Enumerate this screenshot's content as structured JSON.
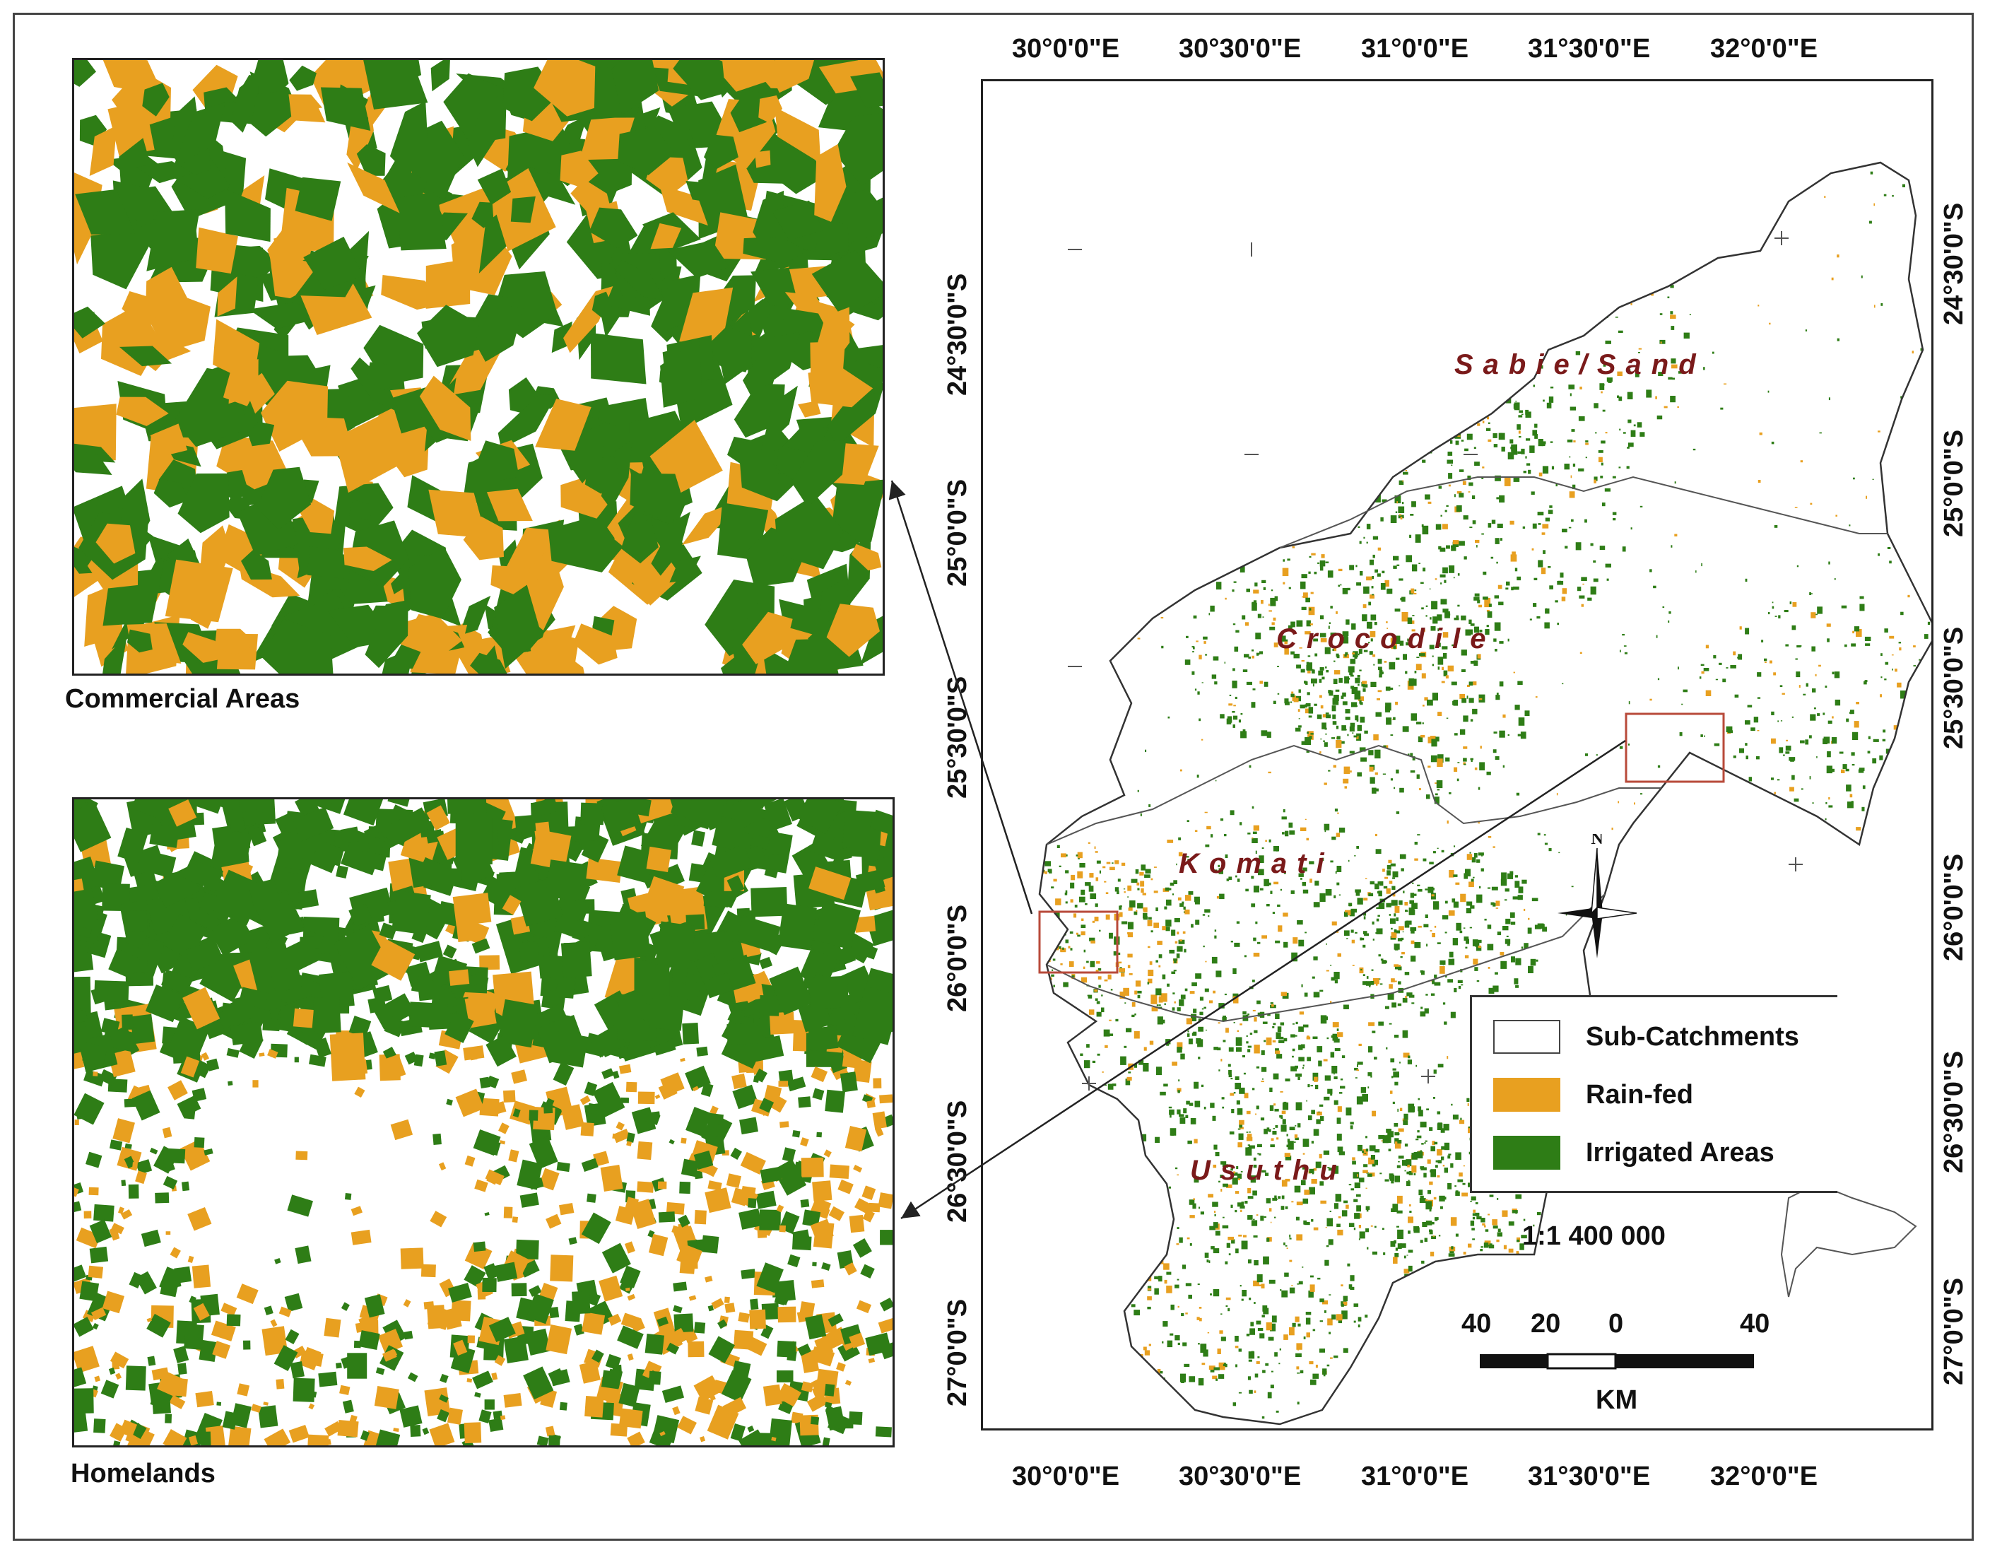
{
  "insets": {
    "commercial_label": "Commercial Areas",
    "homelands_label": "Homelands"
  },
  "axes": {
    "top_ticks": [
      "30°0'0\"E",
      "30°30'0\"E",
      "31°0'0\"E",
      "31°30'0\"E",
      "32°0'0\"E"
    ],
    "bottom_ticks": [
      "30°0'0\"E",
      "30°30'0\"E",
      "31°0'0\"E",
      "31°30'0\"E",
      "32°0'0\"E"
    ],
    "left_ticks": [
      "24°30'0\"S",
      "25°0'0\"S",
      "25°30'0\"S",
      "26°0'0\"S",
      "26°30'0\"S",
      "27°0'0\"S"
    ],
    "right_ticks": [
      "24°30'0\"S",
      "25°0'0\"S",
      "25°30'0\"S",
      "26°0'0\"S",
      "26°30'0\"S",
      "27°0'0\"S"
    ]
  },
  "regions": [
    "Sabie/Sand",
    "Crocodile",
    "Komati",
    "Usuthu"
  ],
  "legend": {
    "items": [
      {
        "label": "Sub-Catchments",
        "color": "#ffffff"
      },
      {
        "label": "Rain-fed",
        "color": "#e8a020"
      },
      {
        "label": "Irrigated Areas",
        "color": "#2e7d16"
      }
    ]
  },
  "scale": {
    "ratio": "1:1 400 000",
    "labels": [
      "40",
      "20",
      "0",
      "40"
    ],
    "unit": "KM"
  },
  "north": {
    "label": "N"
  },
  "colors": {
    "rainfed": "#e8a020",
    "irrigated": "#2e7d16",
    "box": "#b84a3a"
  }
}
